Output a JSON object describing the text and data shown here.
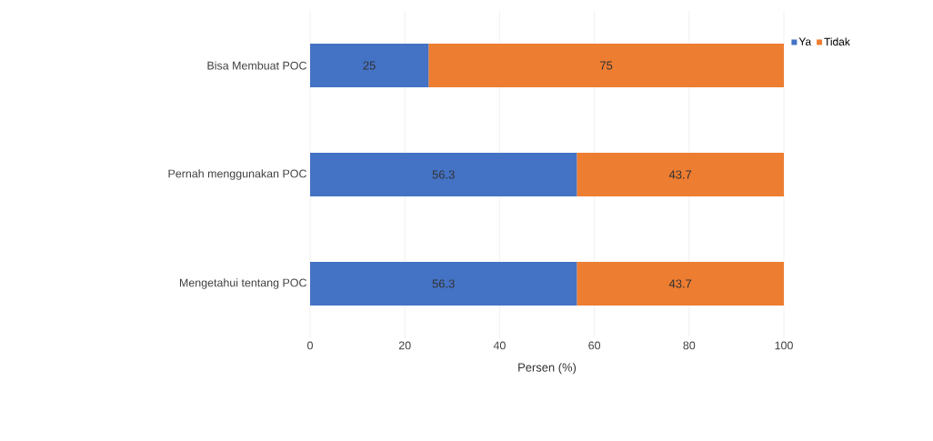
{
  "chart_data": {
    "type": "bar",
    "orientation": "horizontal",
    "stacked": true,
    "categories": [
      "Bisa Membuat POC",
      "Pernah menggunakan POC",
      "Mengetahui tentang POC"
    ],
    "series": [
      {
        "name": "Ya",
        "color": "#4472c4",
        "values": [
          25,
          56.3,
          56.3
        ]
      },
      {
        "name": "Tidak",
        "color": "#ed7d31",
        "values": [
          75,
          43.7,
          43.7
        ]
      }
    ],
    "xlim": [
      0,
      100
    ],
    "xticks": [
      0,
      20,
      40,
      60,
      80,
      100
    ],
    "xlabel": "Persen (%)",
    "grid": "x",
    "legend": "top right",
    "data_labels": true
  }
}
